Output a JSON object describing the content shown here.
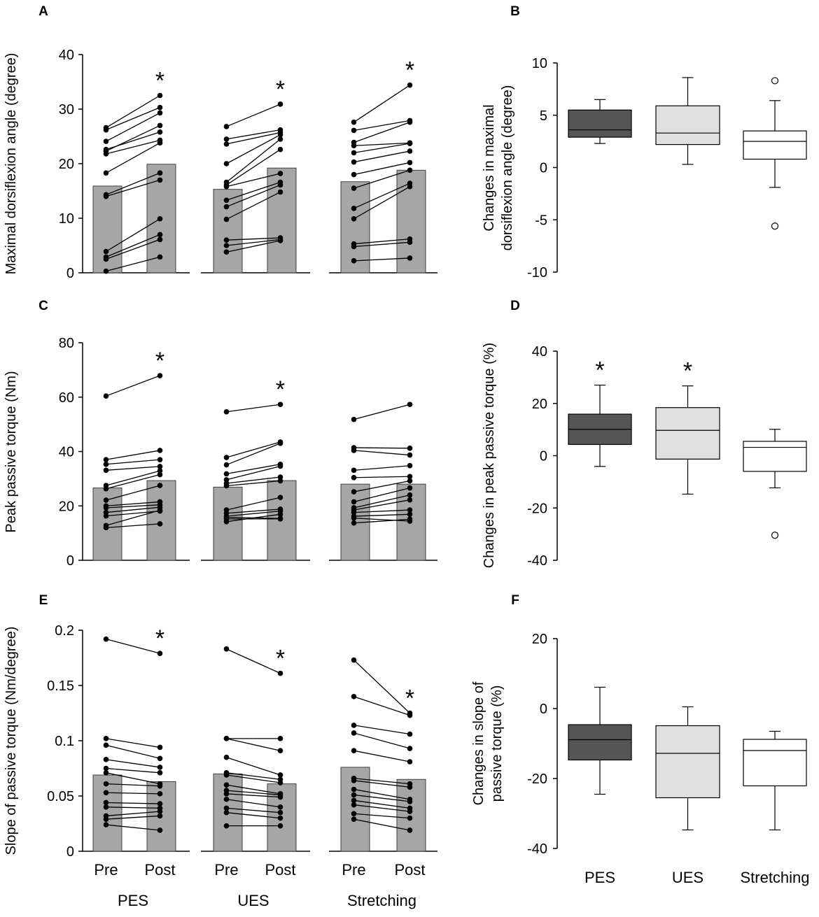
{
  "chart_data": [
    {
      "id": "A",
      "panel_label": "A",
      "type": "bar",
      "subtype": "paired bar with individual lines",
      "ylabel": "Maximal dorsiflexion angle (degree)",
      "ylim": [
        0,
        40
      ],
      "yticks": [
        0,
        10,
        20,
        30,
        40
      ],
      "ytick_labels": [
        "0",
        "10",
        "20",
        "30",
        "40"
      ],
      "groups": [
        "PES",
        "UES",
        "Stretching"
      ],
      "conditions": [
        "Pre",
        "Post"
      ],
      "bar_means": [
        [
          15.9,
          19.9
        ],
        [
          15.3,
          19.2
        ],
        [
          16.7,
          18.8
        ]
      ],
      "significant_marker": "*",
      "significant_groups": [
        0,
        1,
        2
      ],
      "individual_pairs": [
        [
          [
            26.6,
            32.5
          ],
          [
            26.2,
            30.3
          ],
          [
            24.1,
            29.3
          ],
          [
            22.3,
            27.0
          ],
          [
            22.6,
            25.8
          ],
          [
            21.8,
            24.3
          ],
          [
            18.3,
            23.8
          ],
          [
            14.3,
            18.3
          ],
          [
            14.0,
            17.0
          ],
          [
            3.9,
            9.9
          ],
          [
            2.9,
            7.0
          ],
          [
            2.5,
            6.1
          ],
          [
            0.3,
            2.9
          ]
        ],
        [
          [
            26.8,
            30.9
          ],
          [
            24.5,
            26.2
          ],
          [
            23.6,
            25.7
          ],
          [
            20.0,
            25.3
          ],
          [
            16.6,
            24.5
          ],
          [
            16.1,
            22.6
          ],
          [
            15.8,
            18.2
          ],
          [
            13.3,
            16.6
          ],
          [
            12.1,
            16.1
          ],
          [
            9.8,
            14.8
          ],
          [
            6.0,
            6.4
          ],
          [
            5.0,
            6.1
          ],
          [
            3.8,
            5.9
          ]
        ],
        [
          [
            27.6,
            34.4
          ],
          [
            26.1,
            27.9
          ],
          [
            23.9,
            27.6
          ],
          [
            23.3,
            23.8
          ],
          [
            22.0,
            23.7
          ],
          [
            20.3,
            22.3
          ],
          [
            18.0,
            20.2
          ],
          [
            15.5,
            18.8
          ],
          [
            11.8,
            16.4
          ],
          [
            9.9,
            15.8
          ],
          [
            5.3,
            6.2
          ],
          [
            4.8,
            5.6
          ],
          [
            2.2,
            2.7
          ]
        ]
      ]
    },
    {
      "id": "B",
      "panel_label": "B",
      "type": "box",
      "ylabel_lines": [
        "Changes in maximal",
        "dorsiflexion angle (degree)"
      ],
      "ylim": [
        -10,
        10
      ],
      "yticks": [
        -10,
        -5,
        0,
        5,
        10
      ],
      "ytick_labels": [
        "-10",
        "-5",
        "0",
        "5",
        "10"
      ],
      "categories": [
        "PES",
        "UES",
        "Stretching"
      ],
      "fill_colors": [
        "#555555",
        "#e0e0e0",
        "#ffffff"
      ],
      "boxes": [
        {
          "whisker_low": 2.3,
          "q1": 2.9,
          "median": 3.6,
          "q3": 5.5,
          "whisker_high": 6.5,
          "outliers": []
        },
        {
          "whisker_low": 0.3,
          "q1": 2.2,
          "median": 3.3,
          "q3": 5.9,
          "whisker_high": 8.6,
          "outliers": []
        },
        {
          "whisker_low": -1.9,
          "q1": 0.8,
          "median": 2.5,
          "q3": 3.5,
          "whisker_high": 6.4,
          "outliers": [
            8.3,
            -5.6
          ]
        }
      ],
      "significant_marker": "*",
      "significant_groups": []
    },
    {
      "id": "C",
      "panel_label": "C",
      "type": "bar",
      "subtype": "paired bar with individual lines",
      "ylabel": "Peak passive torque (Nm)",
      "ylim": [
        0,
        80
      ],
      "yticks": [
        0,
        20,
        40,
        60,
        80
      ],
      "ytick_labels": [
        "0",
        "20",
        "40",
        "60",
        "80"
      ],
      "groups": [
        "PES",
        "UES",
        "Stretching"
      ],
      "conditions": [
        "Pre",
        "Post"
      ],
      "bar_means": [
        [
          26.6,
          29.3
        ],
        [
          26.9,
          29.3
        ],
        [
          28.0,
          28.0
        ]
      ],
      "significant_marker": "*",
      "significant_groups": [
        0,
        1
      ],
      "individual_pairs": [
        [
          [
            60.4,
            67.9
          ],
          [
            37.0,
            40.4
          ],
          [
            35.3,
            37.0
          ],
          [
            33.1,
            34.5
          ],
          [
            27.5,
            32.9
          ],
          [
            26.3,
            31.5
          ],
          [
            22.1,
            27.5
          ],
          [
            20.0,
            21.5
          ],
          [
            19.3,
            20.4
          ],
          [
            17.6,
            19.5
          ],
          [
            16.3,
            18.1
          ],
          [
            12.8,
            18.4
          ],
          [
            12.0,
            13.4
          ]
        ],
        [
          [
            54.6,
            57.3
          ],
          [
            37.8,
            43.5
          ],
          [
            35.1,
            43.0
          ],
          [
            31.8,
            35.3
          ],
          [
            29.6,
            34.6
          ],
          [
            28.3,
            30.6
          ],
          [
            27.4,
            29.2
          ],
          [
            18.5,
            23.1
          ],
          [
            17.3,
            18.8
          ],
          [
            16.2,
            18.1
          ],
          [
            15.8,
            15.4
          ],
          [
            15.2,
            15.2
          ],
          [
            14.2,
            16.9
          ]
        ],
        [
          [
            51.8,
            57.3
          ],
          [
            41.4,
            41.2
          ],
          [
            40.4,
            38.7
          ],
          [
            33.1,
            34.8
          ],
          [
            30.4,
            30.8
          ],
          [
            25.2,
            29.2
          ],
          [
            21.5,
            26.6
          ],
          [
            19.3,
            24.0
          ],
          [
            18.5,
            22.2
          ],
          [
            17.6,
            18.5
          ],
          [
            16.2,
            16.9
          ],
          [
            15.5,
            14.4
          ],
          [
            13.7,
            15.1
          ]
        ]
      ]
    },
    {
      "id": "D",
      "panel_label": "D",
      "type": "box",
      "ylabel_lines": [
        "Changes in peak passive torque (%)"
      ],
      "ylim": [
        -40,
        40
      ],
      "yticks": [
        -40,
        -20,
        0,
        20,
        40
      ],
      "ytick_labels": [
        "-40",
        "-20",
        "0",
        "20",
        "40"
      ],
      "categories": [
        "PES",
        "UES",
        "Stretching"
      ],
      "fill_colors": [
        "#555555",
        "#e0e0e0",
        "#ffffff"
      ],
      "boxes": [
        {
          "whisker_low": -4.1,
          "q1": 4.3,
          "median": 10.1,
          "q3": 15.9,
          "whisker_high": 27.0,
          "outliers": []
        },
        {
          "whisker_low": -14.7,
          "q1": -1.3,
          "median": 9.7,
          "q3": 18.4,
          "whisker_high": 26.7,
          "outliers": []
        },
        {
          "whisker_low": -12.3,
          "q1": -6.0,
          "median": 3.2,
          "q3": 5.5,
          "whisker_high": 10.1,
          "outliers": [
            -30.4
          ]
        }
      ],
      "significant_marker": "*",
      "significant_groups": [
        0,
        1
      ]
    },
    {
      "id": "E",
      "panel_label": "E",
      "type": "bar",
      "subtype": "paired bar with individual lines",
      "ylabel": "Slope of passive torque (Nm/degree)",
      "ylim": [
        0,
        0.2
      ],
      "yticks": [
        0,
        0.05,
        0.1,
        0.15,
        0.2
      ],
      "ytick_labels": [
        "0",
        "0.05",
        "0.1",
        "0.15",
        "0.2"
      ],
      "groups": [
        "PES",
        "UES",
        "Stretching"
      ],
      "conditions": [
        "Pre",
        "Post"
      ],
      "bar_means": [
        [
          0.069,
          0.063
        ],
        [
          0.07,
          0.061
        ],
        [
          0.076,
          0.065
        ]
      ],
      "significant_marker": "*",
      "significant_groups": [
        0,
        1,
        2
      ],
      "individual_pairs": [
        [
          [
            0.192,
            0.179
          ],
          [
            0.102,
            0.094
          ],
          [
            0.096,
            0.084
          ],
          [
            0.083,
            0.076
          ],
          [
            0.075,
            0.071
          ],
          [
            0.071,
            0.061
          ],
          [
            0.061,
            0.059
          ],
          [
            0.053,
            0.052
          ],
          [
            0.044,
            0.043
          ],
          [
            0.04,
            0.039
          ],
          [
            0.032,
            0.036
          ],
          [
            0.029,
            0.032
          ],
          [
            0.024,
            0.019
          ]
        ],
        [
          [
            0.183,
            0.161
          ],
          [
            0.102,
            0.102
          ],
          [
            0.102,
            0.091
          ],
          [
            0.085,
            0.069
          ],
          [
            0.071,
            0.065
          ],
          [
            0.069,
            0.062
          ],
          [
            0.06,
            0.052
          ],
          [
            0.055,
            0.051
          ],
          [
            0.052,
            0.049
          ],
          [
            0.047,
            0.04
          ],
          [
            0.039,
            0.035
          ],
          [
            0.035,
            0.03
          ],
          [
            0.023,
            0.023
          ]
        ],
        [
          [
            0.173,
            0.125
          ],
          [
            0.14,
            0.123
          ],
          [
            0.114,
            0.106
          ],
          [
            0.107,
            0.093
          ],
          [
            0.091,
            0.081
          ],
          [
            0.066,
            0.061
          ],
          [
            0.064,
            0.058
          ],
          [
            0.056,
            0.047
          ],
          [
            0.051,
            0.045
          ],
          [
            0.046,
            0.039
          ],
          [
            0.042,
            0.036
          ],
          [
            0.034,
            0.03
          ],
          [
            0.029,
            0.019
          ]
        ]
      ]
    },
    {
      "id": "F",
      "panel_label": "F",
      "type": "box",
      "ylabel_lines": [
        "Changes in slope of",
        "passive torque (%)"
      ],
      "ylim": [
        -40,
        20
      ],
      "yticks": [
        -40,
        -20,
        0,
        20
      ],
      "ytick_labels": [
        "-40",
        "-20",
        "0",
        "20"
      ],
      "categories": [
        "PES",
        "UES",
        "Stretching"
      ],
      "fill_colors": [
        "#555555",
        "#e0e0e0",
        "#ffffff"
      ],
      "boxes": [
        {
          "whisker_low": -24.5,
          "q1": -14.7,
          "median": -8.9,
          "q3": -4.6,
          "whisker_high": 6.1,
          "outliers": []
        },
        {
          "whisker_low": -34.7,
          "q1": -25.5,
          "median": -12.8,
          "q3": -4.9,
          "whisker_high": 0.5,
          "outliers": []
        },
        {
          "whisker_low": -34.7,
          "q1": -22.1,
          "median": -12.0,
          "q3": -8.8,
          "whisker_high": -6.5,
          "outliers": []
        }
      ],
      "significant_marker": "*",
      "significant_groups": []
    }
  ],
  "labels": {
    "condition_labels": [
      "Pre",
      "Post"
    ],
    "group_labels": [
      "PES",
      "UES",
      "Stretching"
    ],
    "box_category_labels": [
      "PES",
      "UES",
      "Stretching"
    ]
  },
  "colors": {
    "bar_fill": "#a6a6a6",
    "bar_stroke": "#404040",
    "line_color": "#000000",
    "dot_color": "#000000",
    "axis_color": "#000000"
  }
}
